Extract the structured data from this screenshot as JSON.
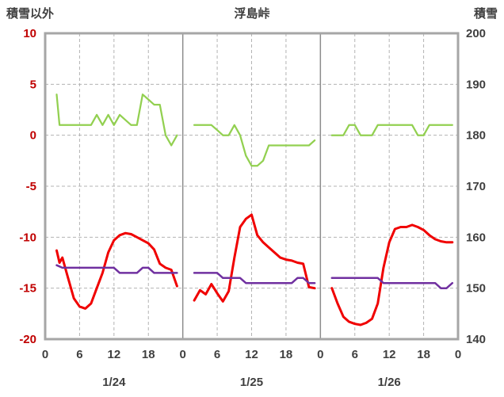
{
  "header": {
    "left_label": "積雪以外",
    "title": "浮島峠",
    "right_label": "積雪"
  },
  "colors": {
    "frame_border": "#a6a6a6",
    "gridline": "#b3b3b3",
    "day_separator": "#8c8c8c",
    "left_axis_text": "#c00000",
    "right_axis_text": "#3f3f3f",
    "bottom_axis_text": "#3f3f3f",
    "green_series": "#92d050",
    "red_series": "#f00000",
    "purple_series": "#7030a0"
  },
  "chart_data": {
    "type": "line",
    "title": "浮島峠",
    "left_axis": {
      "title": "積雪以外",
      "min": -20,
      "max": 10,
      "tick_labels": [
        "10",
        "5",
        "0",
        "-5",
        "-10",
        "-15",
        "-20"
      ],
      "tick_values": [
        10,
        5,
        0,
        -5,
        -10,
        -15,
        -20
      ]
    },
    "right_axis": {
      "title": "積雪",
      "min": 140,
      "max": 200,
      "tick_labels": [
        "200",
        "190",
        "180",
        "170",
        "160",
        "150",
        "140"
      ],
      "tick_values": [
        200,
        190,
        180,
        170,
        160,
        150,
        140
      ]
    },
    "x_axis": {
      "hour_min": 0,
      "hour_max": 72,
      "tick_hours": [
        0,
        6,
        12,
        18,
        24,
        30,
        36,
        42,
        48,
        54,
        60,
        66,
        72
      ],
      "tick_labels": [
        "0",
        "6",
        "12",
        "18",
        "0",
        "6",
        "12",
        "18",
        "0",
        "6",
        "12",
        "18",
        "0"
      ],
      "minor_gridline_hours": [
        6,
        12,
        18,
        30,
        36,
        42,
        54,
        60,
        66
      ],
      "day_boundary_hours": [
        24,
        48
      ],
      "day_labels": [
        {
          "label": "1/24",
          "hour": 12
        },
        {
          "label": "1/25",
          "hour": 36
        },
        {
          "label": "1/26",
          "hour": 60
        }
      ]
    },
    "horizontal_gridline_values": [
      5,
      0,
      -5,
      -10,
      -15
    ],
    "grid": true,
    "legend": "none",
    "series": [
      {
        "id": "green",
        "axis": "left",
        "color_key": "green_series",
        "stroke_width": 2.25,
        "segments": [
          [
            [
              2,
              4
            ],
            [
              2.5,
              1
            ],
            [
              3,
              1
            ],
            [
              4,
              1
            ],
            [
              5,
              1
            ],
            [
              6,
              1
            ],
            [
              7,
              1
            ],
            [
              8,
              1
            ],
            [
              9,
              2
            ],
            [
              10,
              1
            ],
            [
              11,
              2
            ],
            [
              12,
              1
            ],
            [
              13,
              2
            ],
            [
              14,
              1.5
            ],
            [
              15,
              1
            ],
            [
              16,
              1
            ],
            [
              17,
              4
            ],
            [
              18,
              3.5
            ],
            [
              19,
              3
            ],
            [
              20,
              3
            ],
            [
              21,
              0
            ],
            [
              22,
              -1
            ],
            [
              23,
              0
            ]
          ],
          [
            [
              26,
              1
            ],
            [
              27,
              1
            ],
            [
              28,
              1
            ],
            [
              29,
              1
            ],
            [
              30,
              0.5
            ],
            [
              31,
              0
            ],
            [
              32,
              0
            ],
            [
              33,
              1
            ],
            [
              34,
              0
            ],
            [
              35,
              -2
            ],
            [
              36,
              -3
            ],
            [
              37,
              -3
            ],
            [
              38,
              -2.5
            ],
            [
              39,
              -1
            ],
            [
              40,
              -1
            ],
            [
              41,
              -1
            ],
            [
              42,
              -1
            ],
            [
              43,
              -1
            ],
            [
              44,
              -1
            ],
            [
              45,
              -1
            ],
            [
              46,
              -1
            ],
            [
              47,
              -0.5
            ]
          ],
          [
            [
              50,
              0
            ],
            [
              51,
              0
            ],
            [
              52,
              0
            ],
            [
              53,
              1
            ],
            [
              54,
              1
            ],
            [
              55,
              0
            ],
            [
              56,
              0
            ],
            [
              57,
              0
            ],
            [
              58,
              1
            ],
            [
              59,
              1
            ],
            [
              60,
              1
            ],
            [
              61,
              1
            ],
            [
              62,
              1
            ],
            [
              63,
              1
            ],
            [
              64,
              1
            ],
            [
              65,
              0
            ],
            [
              66,
              0
            ],
            [
              67,
              1
            ],
            [
              68,
              1
            ],
            [
              69,
              1
            ],
            [
              70,
              1
            ],
            [
              71,
              1
            ]
          ]
        ]
      },
      {
        "id": "red",
        "axis": "left",
        "color_key": "red_series",
        "stroke_width": 3,
        "segments": [
          [
            [
              2,
              -11.3
            ],
            [
              2.5,
              -12.5
            ],
            [
              3,
              -12
            ],
            [
              4,
              -14
            ],
            [
              5,
              -16
            ],
            [
              6,
              -16.8
            ],
            [
              7,
              -17
            ],
            [
              8,
              -16.5
            ],
            [
              9,
              -15
            ],
            [
              10,
              -13.5
            ],
            [
              11,
              -11.5
            ],
            [
              12,
              -10.3
            ],
            [
              13,
              -9.8
            ],
            [
              14,
              -9.6
            ],
            [
              15,
              -9.7
            ],
            [
              16,
              -10
            ],
            [
              17,
              -10.3
            ],
            [
              18,
              -10.6
            ],
            [
              19,
              -11.2
            ],
            [
              20,
              -12.6
            ],
            [
              21,
              -13
            ],
            [
              22,
              -13.2
            ],
            [
              23,
              -14.8
            ]
          ],
          [
            [
              26,
              -16.2
            ],
            [
              27,
              -15.2
            ],
            [
              28,
              -15.6
            ],
            [
              29,
              -14.6
            ],
            [
              30,
              -15.5
            ],
            [
              31,
              -16.3
            ],
            [
              32,
              -15.3
            ],
            [
              33,
              -12
            ],
            [
              34,
              -9
            ],
            [
              35,
              -8.2
            ],
            [
              36,
              -7.8
            ],
            [
              37,
              -9.8
            ],
            [
              38,
              -10.5
            ],
            [
              39,
              -11
            ],
            [
              40,
              -11.5
            ],
            [
              41,
              -12
            ],
            [
              42,
              -12.2
            ],
            [
              43,
              -12.3
            ],
            [
              44,
              -12.5
            ],
            [
              45,
              -12.6
            ],
            [
              46,
              -14.9
            ],
            [
              47,
              -15
            ]
          ],
          [
            [
              50,
              -15
            ],
            [
              51,
              -16.5
            ],
            [
              52,
              -17.8
            ],
            [
              53,
              -18.3
            ],
            [
              54,
              -18.5
            ],
            [
              55,
              -18.6
            ],
            [
              56,
              -18.4
            ],
            [
              57,
              -18
            ],
            [
              58,
              -16.5
            ],
            [
              59,
              -13
            ],
            [
              60,
              -10.5
            ],
            [
              61,
              -9.2
            ],
            [
              62,
              -9
            ],
            [
              63,
              -9
            ],
            [
              64,
              -8.8
            ],
            [
              65,
              -9
            ],
            [
              66,
              -9.3
            ],
            [
              67,
              -9.8
            ],
            [
              68,
              -10.2
            ],
            [
              69,
              -10.4
            ],
            [
              70,
              -10.5
            ],
            [
              71,
              -10.5
            ]
          ]
        ]
      },
      {
        "id": "purple",
        "axis": "right",
        "color_key": "purple_series",
        "stroke_width": 2.5,
        "segments": [
          [
            [
              2,
              154.5
            ],
            [
              3,
              154
            ],
            [
              4,
              154
            ],
            [
              5,
              154
            ],
            [
              6,
              154
            ],
            [
              7,
              154
            ],
            [
              8,
              154
            ],
            [
              9,
              154
            ],
            [
              10,
              154
            ],
            [
              11,
              154
            ],
            [
              12,
              154
            ],
            [
              13,
              153
            ],
            [
              14,
              153
            ],
            [
              15,
              153
            ],
            [
              16,
              153
            ],
            [
              17,
              154
            ],
            [
              18,
              154
            ],
            [
              19,
              153
            ],
            [
              20,
              153
            ],
            [
              21,
              153
            ],
            [
              22,
              153
            ],
            [
              23,
              153
            ]
          ],
          [
            [
              26,
              153
            ],
            [
              27,
              153
            ],
            [
              28,
              153
            ],
            [
              29,
              153
            ],
            [
              30,
              153
            ],
            [
              31,
              152
            ],
            [
              32,
              152
            ],
            [
              33,
              152
            ],
            [
              34,
              152
            ],
            [
              35,
              151
            ],
            [
              36,
              151
            ],
            [
              37,
              151
            ],
            [
              38,
              151
            ],
            [
              39,
              151
            ],
            [
              40,
              151
            ],
            [
              41,
              151
            ],
            [
              42,
              151
            ],
            [
              43,
              151
            ],
            [
              44,
              152
            ],
            [
              45,
              152
            ],
            [
              46,
              151
            ],
            [
              47,
              151
            ]
          ],
          [
            [
              50,
              152
            ],
            [
              51,
              152
            ],
            [
              52,
              152
            ],
            [
              53,
              152
            ],
            [
              54,
              152
            ],
            [
              55,
              152
            ],
            [
              56,
              152
            ],
            [
              57,
              152
            ],
            [
              58,
              152
            ],
            [
              59,
              151
            ],
            [
              60,
              151
            ],
            [
              61,
              151
            ],
            [
              62,
              151
            ],
            [
              63,
              151
            ],
            [
              64,
              151
            ],
            [
              65,
              151
            ],
            [
              66,
              151
            ],
            [
              67,
              151
            ],
            [
              68,
              151
            ],
            [
              69,
              150
            ],
            [
              70,
              150
            ],
            [
              71,
              151
            ]
          ]
        ]
      }
    ]
  }
}
